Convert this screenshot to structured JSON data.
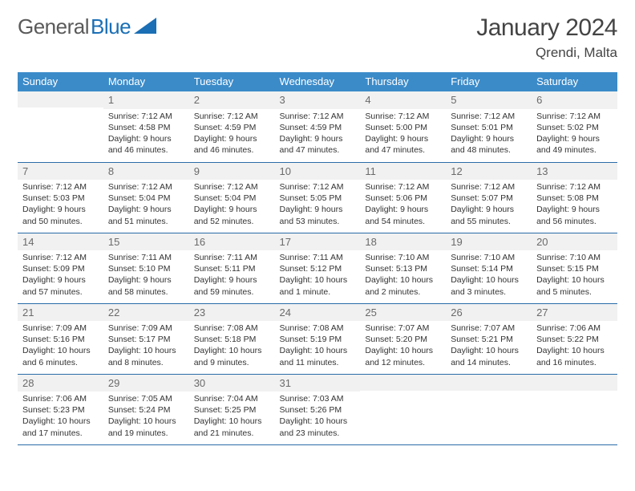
{
  "logo": {
    "part1": "General",
    "part2": "Blue"
  },
  "title": "January 2024",
  "location": "Qrendi, Malta",
  "header_bg": "#3b8bc9",
  "weekdays": [
    "Sunday",
    "Monday",
    "Tuesday",
    "Wednesday",
    "Thursday",
    "Friday",
    "Saturday"
  ],
  "weeks": [
    [
      {
        "n": "",
        "sr": "",
        "ss": "",
        "dl": ""
      },
      {
        "n": "1",
        "sr": "Sunrise: 7:12 AM",
        "ss": "Sunset: 4:58 PM",
        "dl": "Daylight: 9 hours and 46 minutes."
      },
      {
        "n": "2",
        "sr": "Sunrise: 7:12 AM",
        "ss": "Sunset: 4:59 PM",
        "dl": "Daylight: 9 hours and 46 minutes."
      },
      {
        "n": "3",
        "sr": "Sunrise: 7:12 AM",
        "ss": "Sunset: 4:59 PM",
        "dl": "Daylight: 9 hours and 47 minutes."
      },
      {
        "n": "4",
        "sr": "Sunrise: 7:12 AM",
        "ss": "Sunset: 5:00 PM",
        "dl": "Daylight: 9 hours and 47 minutes."
      },
      {
        "n": "5",
        "sr": "Sunrise: 7:12 AM",
        "ss": "Sunset: 5:01 PM",
        "dl": "Daylight: 9 hours and 48 minutes."
      },
      {
        "n": "6",
        "sr": "Sunrise: 7:12 AM",
        "ss": "Sunset: 5:02 PM",
        "dl": "Daylight: 9 hours and 49 minutes."
      }
    ],
    [
      {
        "n": "7",
        "sr": "Sunrise: 7:12 AM",
        "ss": "Sunset: 5:03 PM",
        "dl": "Daylight: 9 hours and 50 minutes."
      },
      {
        "n": "8",
        "sr": "Sunrise: 7:12 AM",
        "ss": "Sunset: 5:04 PM",
        "dl": "Daylight: 9 hours and 51 minutes."
      },
      {
        "n": "9",
        "sr": "Sunrise: 7:12 AM",
        "ss": "Sunset: 5:04 PM",
        "dl": "Daylight: 9 hours and 52 minutes."
      },
      {
        "n": "10",
        "sr": "Sunrise: 7:12 AM",
        "ss": "Sunset: 5:05 PM",
        "dl": "Daylight: 9 hours and 53 minutes."
      },
      {
        "n": "11",
        "sr": "Sunrise: 7:12 AM",
        "ss": "Sunset: 5:06 PM",
        "dl": "Daylight: 9 hours and 54 minutes."
      },
      {
        "n": "12",
        "sr": "Sunrise: 7:12 AM",
        "ss": "Sunset: 5:07 PM",
        "dl": "Daylight: 9 hours and 55 minutes."
      },
      {
        "n": "13",
        "sr": "Sunrise: 7:12 AM",
        "ss": "Sunset: 5:08 PM",
        "dl": "Daylight: 9 hours and 56 minutes."
      }
    ],
    [
      {
        "n": "14",
        "sr": "Sunrise: 7:12 AM",
        "ss": "Sunset: 5:09 PM",
        "dl": "Daylight: 9 hours and 57 minutes."
      },
      {
        "n": "15",
        "sr": "Sunrise: 7:11 AM",
        "ss": "Sunset: 5:10 PM",
        "dl": "Daylight: 9 hours and 58 minutes."
      },
      {
        "n": "16",
        "sr": "Sunrise: 7:11 AM",
        "ss": "Sunset: 5:11 PM",
        "dl": "Daylight: 9 hours and 59 minutes."
      },
      {
        "n": "17",
        "sr": "Sunrise: 7:11 AM",
        "ss": "Sunset: 5:12 PM",
        "dl": "Daylight: 10 hours and 1 minute."
      },
      {
        "n": "18",
        "sr": "Sunrise: 7:10 AM",
        "ss": "Sunset: 5:13 PM",
        "dl": "Daylight: 10 hours and 2 minutes."
      },
      {
        "n": "19",
        "sr": "Sunrise: 7:10 AM",
        "ss": "Sunset: 5:14 PM",
        "dl": "Daylight: 10 hours and 3 minutes."
      },
      {
        "n": "20",
        "sr": "Sunrise: 7:10 AM",
        "ss": "Sunset: 5:15 PM",
        "dl": "Daylight: 10 hours and 5 minutes."
      }
    ],
    [
      {
        "n": "21",
        "sr": "Sunrise: 7:09 AM",
        "ss": "Sunset: 5:16 PM",
        "dl": "Daylight: 10 hours and 6 minutes."
      },
      {
        "n": "22",
        "sr": "Sunrise: 7:09 AM",
        "ss": "Sunset: 5:17 PM",
        "dl": "Daylight: 10 hours and 8 minutes."
      },
      {
        "n": "23",
        "sr": "Sunrise: 7:08 AM",
        "ss": "Sunset: 5:18 PM",
        "dl": "Daylight: 10 hours and 9 minutes."
      },
      {
        "n": "24",
        "sr": "Sunrise: 7:08 AM",
        "ss": "Sunset: 5:19 PM",
        "dl": "Daylight: 10 hours and 11 minutes."
      },
      {
        "n": "25",
        "sr": "Sunrise: 7:07 AM",
        "ss": "Sunset: 5:20 PM",
        "dl": "Daylight: 10 hours and 12 minutes."
      },
      {
        "n": "26",
        "sr": "Sunrise: 7:07 AM",
        "ss": "Sunset: 5:21 PM",
        "dl": "Daylight: 10 hours and 14 minutes."
      },
      {
        "n": "27",
        "sr": "Sunrise: 7:06 AM",
        "ss": "Sunset: 5:22 PM",
        "dl": "Daylight: 10 hours and 16 minutes."
      }
    ],
    [
      {
        "n": "28",
        "sr": "Sunrise: 7:06 AM",
        "ss": "Sunset: 5:23 PM",
        "dl": "Daylight: 10 hours and 17 minutes."
      },
      {
        "n": "29",
        "sr": "Sunrise: 7:05 AM",
        "ss": "Sunset: 5:24 PM",
        "dl": "Daylight: 10 hours and 19 minutes."
      },
      {
        "n": "30",
        "sr": "Sunrise: 7:04 AM",
        "ss": "Sunset: 5:25 PM",
        "dl": "Daylight: 10 hours and 21 minutes."
      },
      {
        "n": "31",
        "sr": "Sunrise: 7:03 AM",
        "ss": "Sunset: 5:26 PM",
        "dl": "Daylight: 10 hours and 23 minutes."
      },
      {
        "n": "",
        "sr": "",
        "ss": "",
        "dl": ""
      },
      {
        "n": "",
        "sr": "",
        "ss": "",
        "dl": ""
      },
      {
        "n": "",
        "sr": "",
        "ss": "",
        "dl": ""
      }
    ]
  ]
}
